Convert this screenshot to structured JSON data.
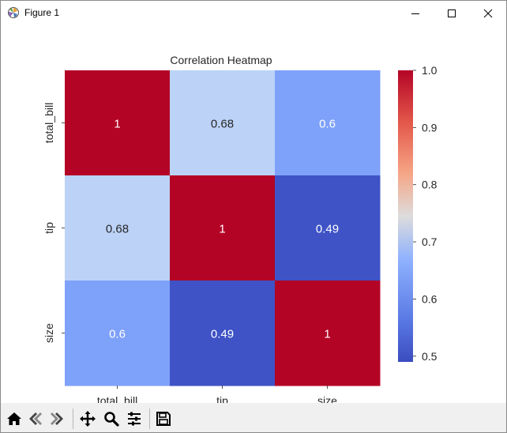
{
  "window": {
    "title": "Figure 1",
    "icons": [
      "matplotlib-icon",
      "minimize-icon",
      "maximize-icon",
      "close-icon"
    ]
  },
  "chart_data": {
    "type": "heatmap",
    "title": "Correlation Heatmap",
    "x_labels": [
      "total_bill",
      "tip",
      "size"
    ],
    "y_labels": [
      "total_bill",
      "tip",
      "size"
    ],
    "matrix": [
      [
        1,
        0.68,
        0.6
      ],
      [
        0.68,
        1,
        0.49
      ],
      [
        0.6,
        0.49,
        1
      ]
    ],
    "cell_labels": [
      [
        "1",
        "0.68",
        "0.6"
      ],
      [
        "0.68",
        "1",
        "0.49"
      ],
      [
        "0.6",
        "0.49",
        "1"
      ]
    ],
    "cell_colors": [
      [
        "#b40426",
        "#bcd2f7",
        "#7ea1fa"
      ],
      [
        "#bcd2f7",
        "#b40426",
        "#3f53c6"
      ],
      [
        "#7ea1fa",
        "#3f53c6",
        "#b40426"
      ]
    ],
    "cell_text_colors": [
      [
        "#ffffff",
        "#262626",
        "#ffffff"
      ],
      [
        "#262626",
        "#ffffff",
        "#ffffff"
      ],
      [
        "#ffffff",
        "#ffffff",
        "#ffffff"
      ]
    ],
    "colormap": "coolwarm",
    "colorbar": {
      "vmin": 0.49,
      "vmax": 1.0,
      "ticks": [
        0.5,
        0.6,
        0.7,
        0.8,
        0.9,
        1.0
      ],
      "tick_labels": [
        "0.5",
        "0.6",
        "0.7",
        "0.8",
        "0.9",
        "1.0"
      ]
    }
  },
  "toolbar": {
    "buttons": [
      {
        "name": "home-icon"
      },
      {
        "name": "back-icon"
      },
      {
        "name": "forward-icon"
      },
      {
        "name": "pan-icon"
      },
      {
        "name": "zoom-icon"
      },
      {
        "name": "configure-subplots-icon"
      },
      {
        "name": "save-icon"
      }
    ]
  }
}
